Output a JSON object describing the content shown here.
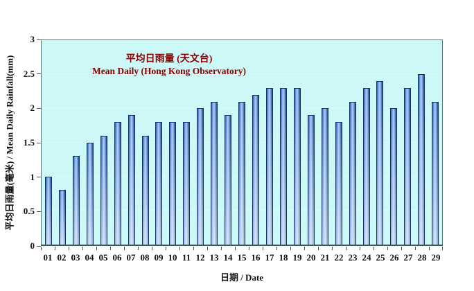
{
  "chart_data": {
    "type": "bar",
    "title_zh": "平均日雨量 (天文台)",
    "title_en": "Mean Daily (Hong Kong Observatory)",
    "ylabel": "平均日雨量(毫米) / Mean Daily Rainfall(mm)",
    "xlabel": "日期 / Date",
    "categories": [
      "01",
      "02",
      "03",
      "04",
      "05",
      "06",
      "07",
      "08",
      "09",
      "10",
      "11",
      "12",
      "13",
      "14",
      "15",
      "16",
      "17",
      "18",
      "19",
      "20",
      "21",
      "22",
      "23",
      "24",
      "25",
      "26",
      "27",
      "28",
      "29"
    ],
    "values": [
      1.0,
      0.8,
      1.3,
      1.5,
      1.6,
      1.8,
      1.9,
      1.6,
      1.8,
      1.8,
      1.8,
      2.0,
      2.1,
      1.9,
      2.1,
      2.2,
      2.3,
      2.3,
      2.3,
      1.9,
      2.0,
      1.8,
      2.1,
      2.3,
      2.4,
      2.0,
      2.3,
      2.5,
      2.1
    ],
    "ylim": [
      0,
      3
    ],
    "yticks": [
      0,
      0.5,
      1,
      1.5,
      2,
      2.5,
      3
    ],
    "ytick_labels": [
      "0",
      "0.5",
      "1",
      "1.5",
      "2",
      "2.5",
      "3"
    ],
    "grid": "horizontal-dotted",
    "legend": "none",
    "colors": {
      "title_text": "#8b0000",
      "plot_background": "#ccf8f8",
      "axis": "#425555",
      "gridline": "#eef9f9",
      "bar_gradient": [
        "#2a5cb0",
        "#8fb8ee",
        "#a9ccf6",
        "#5e8fd6",
        "#1b3c7e"
      ],
      "bar_border": "#123064",
      "tick_text": "#111111"
    }
  }
}
